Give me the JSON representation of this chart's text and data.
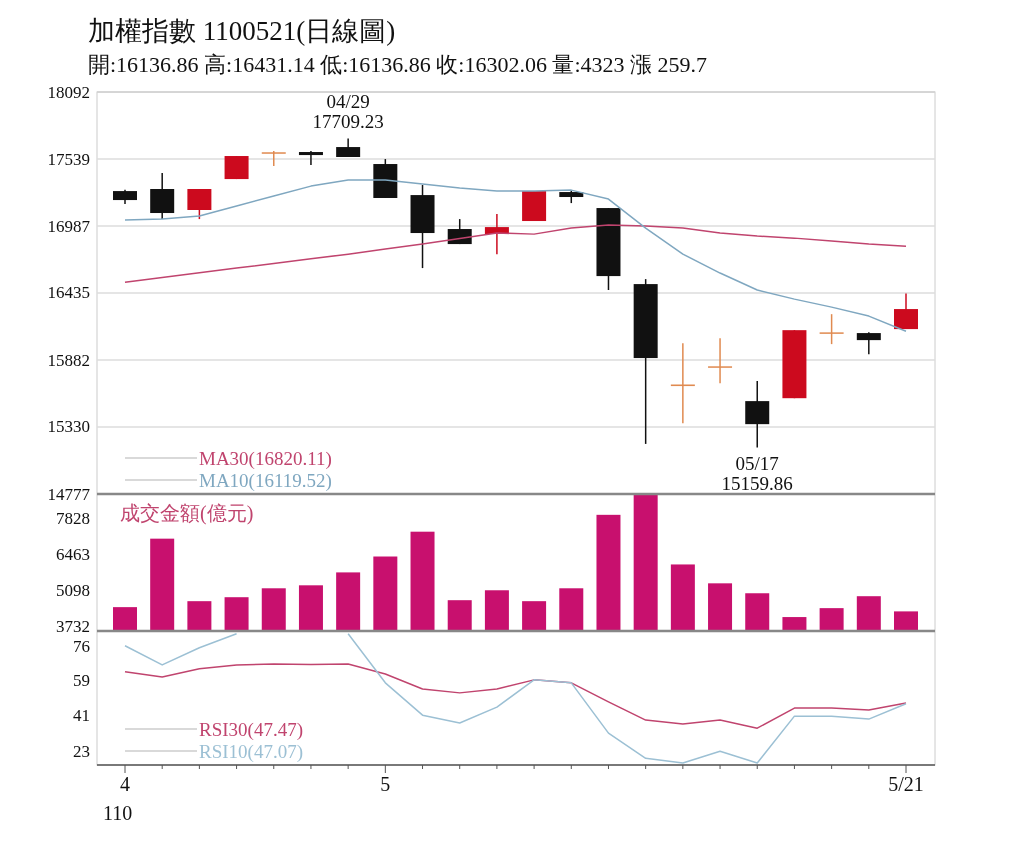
{
  "chart_data": [
    {
      "type": "candlestick",
      "title": "加權指數 1100521(日線圖)",
      "subtitle": "開:16136.86 高:16431.14 低:16136.86 收:16302.06 量:4323 漲 259.7",
      "ohlc": [
        [
          17275,
          17285,
          17168,
          17201
        ],
        [
          17292,
          17424,
          17044,
          17094
        ],
        [
          17119,
          17292,
          17044,
          17292
        ],
        [
          17374,
          17564,
          17374,
          17564
        ],
        [
          17590,
          17605,
          17482,
          17595
        ],
        [
          17597,
          17605,
          17490,
          17572
        ],
        [
          17638,
          17709.23,
          17556,
          17556
        ],
        [
          17498,
          17539,
          17218,
          17218
        ],
        [
          17242,
          17325,
          16640,
          16929
        ],
        [
          16962,
          17044,
          16838,
          16838
        ],
        [
          16921,
          17086,
          16755,
          16978
        ],
        [
          17028,
          17275,
          17028,
          17275
        ],
        [
          17267,
          17280,
          17176,
          17226
        ],
        [
          17135,
          17135,
          16459,
          16574
        ],
        [
          16508,
          16549,
          15190,
          15898
        ],
        [
          15667,
          16021,
          15361,
          15680
        ],
        [
          15820,
          16062,
          15691,
          15830
        ],
        [
          15543,
          15708,
          15159.86,
          15353
        ],
        [
          15567,
          16128,
          15567,
          16128
        ],
        [
          16100,
          16260,
          16013,
          16110
        ],
        [
          16104,
          16110,
          15930,
          16046
        ],
        [
          16136.86,
          16431.14,
          16136.86,
          16302.06
        ]
      ],
      "colors": [
        "#111111",
        "#111111",
        "#cc0a1e",
        "#cc0a1e",
        "#e08a50",
        "#111111",
        "#111111",
        "#111111",
        "#111111",
        "#111111",
        "#cc0a1e",
        "#cc0a1e",
        "#111111",
        "#111111",
        "#111111",
        "#e08a50",
        "#e08a50",
        "#111111",
        "#cc0a1e",
        "#e08a50",
        "#111111",
        "#cc0a1e"
      ],
      "ylim": [
        14777,
        18092
      ],
      "yticks": [
        18092,
        17539,
        16987,
        16435,
        15882,
        15330,
        14777
      ],
      "grid": "y",
      "tick_labels": "y",
      "legend": "bottom left",
      "series": [
        {
          "type": "line",
          "name": "MA30(16820.11)",
          "color": "#c0446e",
          "values": [
            16524,
            16563,
            16601,
            16640,
            16678,
            16716,
            16755,
            16797,
            16838,
            16884,
            16929,
            16920,
            16970,
            16995,
            16987,
            16970,
            16929,
            16904,
            16887,
            16863,
            16838,
            16820.11
          ]
        },
        {
          "type": "line",
          "name": "MA10(16119.52)",
          "color": "#7fa7c0",
          "values": [
            17036,
            17044,
            17069,
            17152,
            17234,
            17316,
            17366,
            17366,
            17333,
            17300,
            17275,
            17275,
            17283,
            17209,
            16970,
            16755,
            16599,
            16459,
            16384,
            16318,
            16244,
            16119.52
          ]
        }
      ],
      "annotations": [
        {
          "text": "04/29",
          "y": 17709.23
        },
        {
          "text": "17709.23",
          "y": 17709.23
        },
        {
          "text": "05/17",
          "y": 15159.86
        },
        {
          "text": "15159.86",
          "y": 15159.86
        }
      ]
    },
    {
      "type": "bar",
      "title": "成交金額(億元)",
      "values": [
        4484,
        7078,
        4710,
        4860,
        5198,
        5311,
        5800,
        6402,
        7342,
        4747,
        5123,
        4710,
        5198,
        7981,
        8770,
        6101,
        5386,
        5010,
        4108,
        4446,
        4898,
        4323
      ],
      "color": "#c8106e",
      "ylim": [
        3580,
        8770
      ],
      "yticks": [
        7828,
        6463,
        5098,
        3732
      ],
      "tick_labels": "y"
    },
    {
      "type": "line",
      "categories": [
        "4",
        null,
        null,
        null,
        null,
        null,
        null,
        "5",
        null,
        null,
        null,
        null,
        null,
        null,
        null,
        null,
        null,
        null,
        null,
        null,
        null,
        "5/21"
      ],
      "ylim": [
        16,
        84
      ],
      "yticks": [
        76,
        59,
        41,
        23
      ],
      "legend": "bottom left",
      "series": [
        {
          "name": "RSI30(47.47)",
          "color": "#c0446e",
          "values": [
            63.3,
            60.7,
            64.8,
            66.8,
            67.3,
            67,
            67.3,
            62.2,
            54.6,
            52.6,
            54.6,
            59.2,
            57.7,
            48,
            38.8,
            36.8,
            38.8,
            34.7,
            44.9,
            44.9,
            43.9,
            47.47
          ]
        },
        {
          "name": "RSI10(47.07)",
          "color": "#9cc0d4",
          "values": [
            76.5,
            66.8,
            75.5,
            82.6,
            null,
            null,
            82.6,
            57.7,
            41.3,
            37.3,
            45.4,
            59.2,
            57.7,
            32.2,
            19.4,
            17,
            23,
            17,
            40.8,
            40.8,
            39.3,
            47.07
          ]
        }
      ],
      "annotations": [
        "110"
      ]
    }
  ]
}
